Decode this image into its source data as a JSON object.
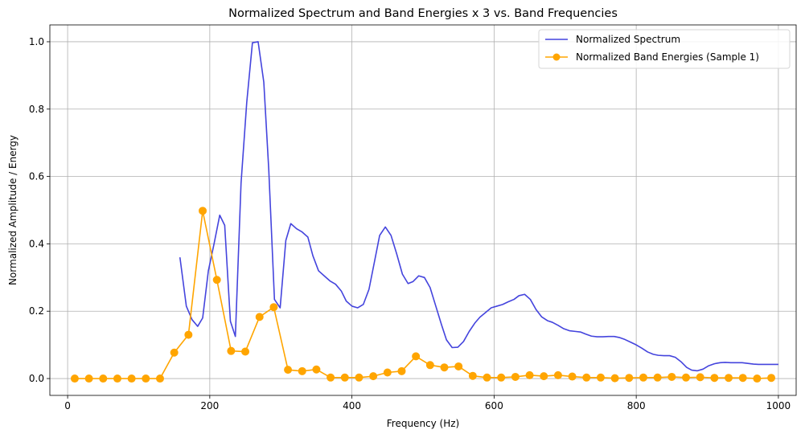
{
  "chart_data": {
    "type": "line",
    "title": "Normalized Spectrum and Band Energies x 3 vs. Band Frequencies",
    "xlabel": "Frequency (Hz)",
    "ylabel": "Normalized Amplitude / Energy",
    "xlim": [
      -25,
      1025
    ],
    "ylim": [
      -0.05,
      1.05
    ],
    "xticks": [
      0,
      200,
      400,
      600,
      800,
      1000
    ],
    "yticks": [
      0.0,
      0.2,
      0.4,
      0.6,
      0.8,
      1.0
    ],
    "xtick_labels": [
      "0",
      "200",
      "400",
      "600",
      "800",
      "1000"
    ],
    "ytick_labels": [
      "0.0",
      "0.2",
      "0.4",
      "0.6",
      "0.8",
      "1.0"
    ],
    "grid": true,
    "legend_position": "top-right",
    "series": [
      {
        "name": "Normalized Spectrum",
        "color": "#4444dd",
        "marker": "none",
        "x": [
          158,
          167,
          175,
          183,
          190,
          198,
          206,
          214,
          221,
          229,
          236,
          244,
          252,
          260,
          268,
          276,
          283,
          291,
          299,
          307,
          314,
          322,
          330,
          338,
          345,
          353,
          361,
          369,
          377,
          385,
          392,
          400,
          408,
          416,
          424,
          432,
          439,
          447,
          455,
          463,
          471,
          479,
          486,
          494,
          502,
          510,
          518,
          526,
          533,
          541,
          549,
          557,
          565,
          573,
          580,
          588,
          596,
          604,
          612,
          620,
          628,
          635,
          643,
          651,
          659,
          667,
          675,
          682,
          690,
          698,
          706,
          714,
          722,
          729,
          737,
          745,
          753,
          761,
          769,
          776,
          784,
          792,
          800,
          808,
          816,
          824,
          831,
          839,
          847,
          855,
          863,
          871,
          878,
          886,
          894,
          902,
          910,
          918,
          925,
          933,
          941,
          949,
          957,
          965,
          972,
          980,
          988,
          996,
          1000
        ],
        "y": [
          0.36,
          0.215,
          0.175,
          0.155,
          0.18,
          0.32,
          0.4,
          0.485,
          0.455,
          0.17,
          0.125,
          0.58,
          0.82,
          0.997,
          1.0,
          0.88,
          0.62,
          0.235,
          0.21,
          0.41,
          0.46,
          0.445,
          0.435,
          0.42,
          0.365,
          0.32,
          0.305,
          0.29,
          0.28,
          0.26,
          0.23,
          0.215,
          0.21,
          0.22,
          0.265,
          0.35,
          0.425,
          0.45,
          0.425,
          0.37,
          0.31,
          0.282,
          0.288,
          0.305,
          0.3,
          0.27,
          0.215,
          0.16,
          0.115,
          0.092,
          0.093,
          0.11,
          0.14,
          0.165,
          0.182,
          0.196,
          0.21,
          0.215,
          0.22,
          0.228,
          0.235,
          0.246,
          0.25,
          0.235,
          0.205,
          0.183,
          0.172,
          0.167,
          0.158,
          0.148,
          0.142,
          0.14,
          0.138,
          0.132,
          0.126,
          0.124,
          0.124,
          0.125,
          0.125,
          0.122,
          0.116,
          0.108,
          0.1,
          0.09,
          0.079,
          0.072,
          0.069,
          0.068,
          0.068,
          0.063,
          0.05,
          0.033,
          0.025,
          0.023,
          0.028,
          0.038,
          0.044,
          0.047,
          0.048,
          0.047,
          0.047,
          0.047,
          0.045,
          0.043,
          0.042,
          0.042,
          0.042,
          0.042,
          0.042
        ]
      },
      {
        "name": "Normalized Band Energies (Sample 1)",
        "color": "#ffa500",
        "marker": "circle",
        "x": [
          10,
          30,
          50,
          70,
          90,
          110,
          130,
          150,
          170,
          190,
          210,
          230,
          250,
          270,
          290,
          310,
          330,
          350,
          370,
          390,
          410,
          430,
          450,
          470,
          490,
          510,
          530,
          550,
          570,
          590,
          610,
          630,
          650,
          670,
          690,
          710,
          730,
          750,
          770,
          790,
          810,
          830,
          850,
          870,
          890,
          910,
          930,
          950,
          970,
          990
        ],
        "y": [
          0.0,
          0.0,
          0.0,
          0.0,
          0.0,
          0.0,
          0.0,
          0.077,
          0.13,
          0.498,
          0.293,
          0.082,
          0.08,
          0.183,
          0.212,
          0.026,
          0.022,
          0.027,
          0.003,
          0.003,
          0.003,
          0.007,
          0.018,
          0.022,
          0.066,
          0.04,
          0.033,
          0.036,
          0.008,
          0.003,
          0.003,
          0.005,
          0.01,
          0.007,
          0.01,
          0.006,
          0.003,
          0.003,
          0.001,
          0.002,
          0.003,
          0.003,
          0.005,
          0.003,
          0.004,
          0.002,
          0.002,
          0.002,
          0.0,
          0.002
        ]
      }
    ]
  }
}
